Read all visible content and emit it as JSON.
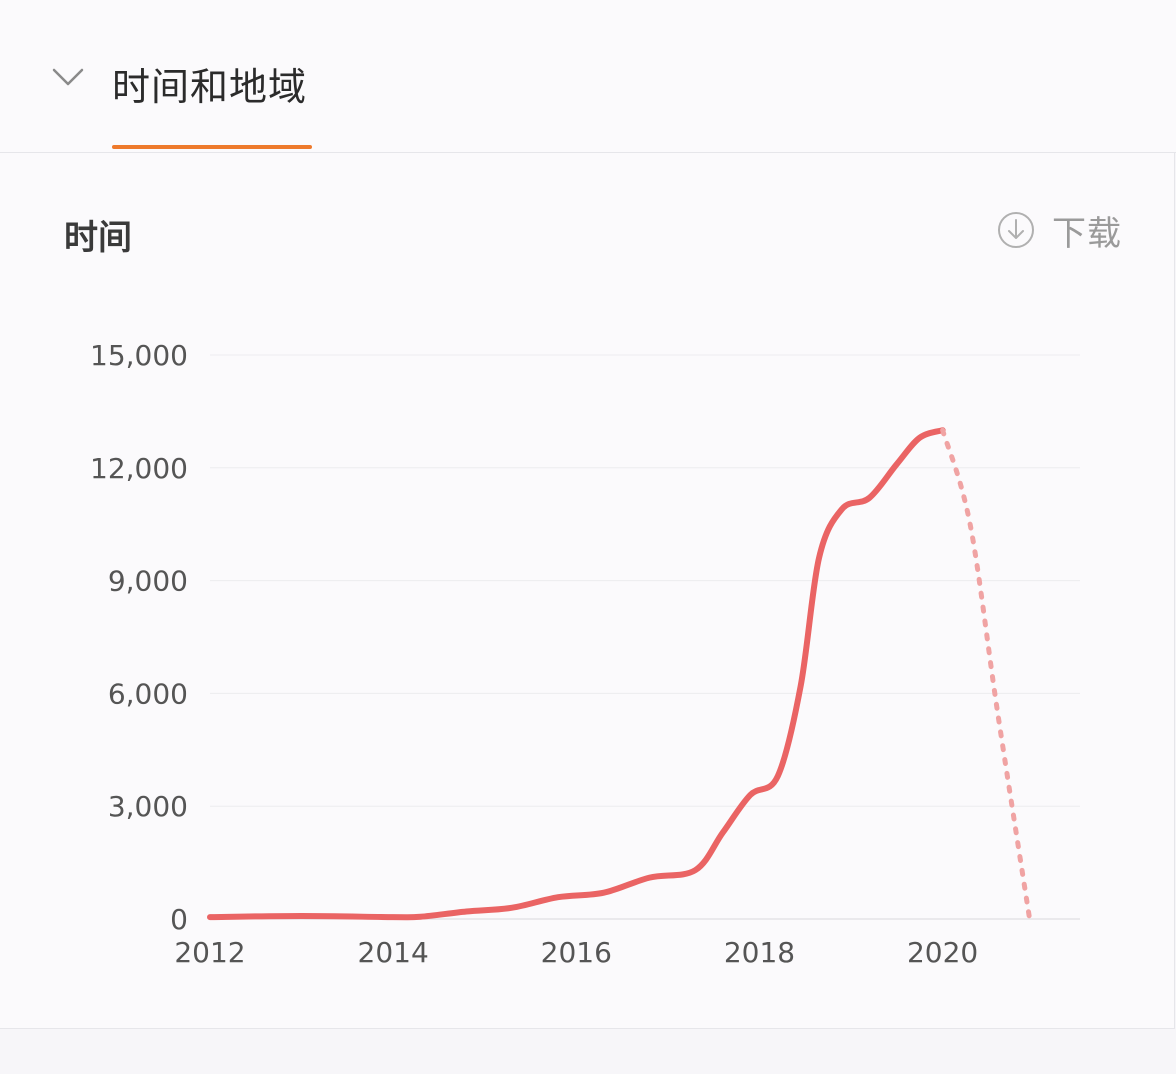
{
  "header": {
    "tab_label": "时间和地域"
  },
  "card": {
    "title": "时间",
    "download_label": "下载"
  },
  "icons": {
    "collapse": "chevron-down-icon",
    "download": "download-circle-icon"
  },
  "colors": {
    "accent": "#ee7a2c",
    "line": "#ea6464",
    "projection": "#f0a3a3"
  },
  "chart_data": {
    "type": "line",
    "x_ticks": [
      "2012",
      "2014",
      "2016",
      "2018",
      "2020"
    ],
    "y_ticks": [
      "15,000",
      "12,000",
      "9,000",
      "6,000",
      "3,000",
      "0"
    ],
    "xlim": [
      2012,
      2021.5
    ],
    "ylim": [
      0,
      15000
    ],
    "grid": true,
    "series": [
      {
        "style": "solid",
        "x": [
          2012,
          2013,
          2014,
          2014.3,
          2014.8,
          2015.3,
          2015.8,
          2016.3,
          2016.8,
          2017.3,
          2017.6,
          2017.9,
          2018.2,
          2018.45,
          2018.65,
          2018.9,
          2019.2,
          2019.5,
          2019.75,
          2020
        ],
        "y": [
          50,
          80,
          50,
          60,
          200,
          300,
          580,
          700,
          1100,
          1300,
          2300,
          3300,
          3800,
          6200,
          9600,
          10900,
          11200,
          12100,
          12800,
          13000
        ]
      },
      {
        "style": "dotted",
        "x": [
          2020,
          2020.3,
          2020.6,
          2020.95
        ],
        "y": [
          13000,
          10500,
          5500,
          0
        ]
      }
    ]
  }
}
